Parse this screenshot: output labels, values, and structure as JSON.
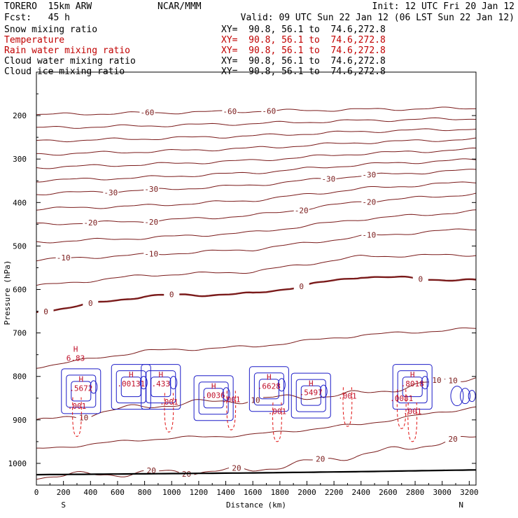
{
  "header": {
    "model": "TORERO  15km ARW",
    "org": "NCAR/MMM",
    "init": "Init: 12 UTC Fri 20 Jan 12",
    "fcst": "Fcst:   45 h",
    "valid": "Valid: 09 UTC Sun 22 Jan 12 (06 LST Sun 22 Jan 12)"
  },
  "fields": [
    {
      "name": "Snow mixing ratio",
      "xy": "XY=  90.8, 56.1 to  74.6,272.8",
      "color": "#000000"
    },
    {
      "name": "Temperature",
      "xy": "XY=  90.8, 56.1 to  74.6,272.8",
      "color": "#c00000"
    },
    {
      "name": "Rain water mixing ratio",
      "xy": "XY=  90.8, 56.1 to  74.6,272.8",
      "color": "#c00000"
    },
    {
      "name": "Cloud water mixing ratio",
      "xy": "XY=  90.8, 56.1 to  74.6,272.8",
      "color": "#000000"
    },
    {
      "name": "Cloud ice mixing ratio",
      "xy": "XY=  90.8, 56.1 to  74.6,272.8",
      "color": "#000000"
    }
  ],
  "colors": {
    "temperature": "#7a1a1a",
    "cloud": "#1c1cc8",
    "rain": "#e01010",
    "marker": "#c0102a",
    "ground": "#000000"
  },
  "chart_data": {
    "type": "contour cross-section",
    "xlabel": "Distance (km)",
    "ylabel": "Pressure (hPa)",
    "xlim": [
      0,
      3250
    ],
    "ylim": [
      1050,
      100
    ],
    "x_ticks": [
      0,
      200,
      400,
      600,
      800,
      1000,
      1200,
      1400,
      1600,
      1800,
      2000,
      2200,
      2400,
      2600,
      2800,
      3000,
      3200
    ],
    "y_ticks": [
      200,
      300,
      400,
      500,
      600,
      700,
      800,
      900,
      1000
    ],
    "x_end_labels": {
      "left": "S",
      "right": "N"
    },
    "isotherms": [
      {
        "level": -60,
        "x": [
          0,
          800,
          1600,
          2400,
          3250
        ],
        "p": [
          198,
          194,
          190,
          186,
          183
        ],
        "labels": [
          {
            "text": "-60",
            "x": 820
          },
          {
            "text": "-60",
            "x": 1430
          },
          {
            "text": "-60",
            "x": 1720
          }
        ]
      },
      {
        "level": -30,
        "x": [
          0,
          800,
          1600,
          2400,
          3250
        ],
        "p": [
          380,
          372,
          360,
          338,
          325
        ],
        "labels": [
          {
            "text": "-30",
            "x": 550
          },
          {
            "text": "-30",
            "x": 850
          },
          {
            "text": "-30",
            "x": 2160
          },
          {
            "text": "-30",
            "x": 2460
          }
        ]
      },
      {
        "level": -20,
        "x": [
          0,
          800,
          1600,
          2400,
          3250
        ],
        "p": [
          450,
          443,
          430,
          398,
          380
        ],
        "labels": [
          {
            "text": "-20",
            "x": 400
          },
          {
            "text": "-20",
            "x": 850
          },
          {
            "text": "-20",
            "x": 1960
          },
          {
            "text": "-20",
            "x": 2460
          }
        ]
      },
      {
        "level": -10,
        "x": [
          0,
          800,
          1600,
          2400,
          3250
        ],
        "p": [
          532,
          520,
          508,
          478,
          460
        ],
        "labels": [
          {
            "text": "-10",
            "x": 200
          },
          {
            "text": "-10",
            "x": 850
          },
          {
            "text": "-10",
            "x": 2460
          }
        ]
      },
      {
        "level": 0,
        "x": [
          0,
          800,
          1600,
          2400,
          3250
        ],
        "p": [
          652,
          615,
          610,
          570,
          580
        ],
        "labels": [
          {
            "text": "0",
            "x": 70
          },
          {
            "text": "0",
            "x": 400
          },
          {
            "text": "0",
            "x": 1000
          },
          {
            "text": "0",
            "x": 1960
          },
          {
            "text": "0",
            "x": 2840
          }
        ]
      },
      {
        "level": 10,
        "x": [
          0,
          800,
          1600,
          2400,
          3250
        ],
        "p": [
          905,
          868,
          853,
          840,
          800
        ],
        "labels": [
          {
            "text": "10",
            "x": 350
          },
          {
            "text": "10",
            "x": 1620
          },
          {
            "text": "10",
            "x": 2960
          },
          {
            "text": "10",
            "x": 3080
          }
        ]
      },
      {
        "level": 20,
        "x": [
          0,
          800,
          1600,
          2400,
          3250
        ],
        "p": [
          1030,
          1022,
          1015,
          980,
          940
        ],
        "labels": [
          {
            "text": "20",
            "x": 850
          },
          {
            "text": "20",
            "x": 1110
          },
          {
            "text": "20",
            "x": 1480
          },
          {
            "text": "20",
            "x": 2100
          },
          {
            "text": "20",
            "x": 3080
          }
        ]
      }
    ],
    "highs": [
      {
        "label": "H",
        "value": "6.83",
        "x": 290,
        "p": 753
      },
      {
        "label": "H",
        "value": ".5672",
        "x": 330,
        "p": 822
      },
      {
        "label": "H",
        "value": ".00131",
        "x": 700,
        "p": 812
      },
      {
        "label": "H",
        "value": ".433",
        "x": 920,
        "p": 812
      },
      {
        "label": "H",
        "value": ".0036",
        "x": 1310,
        "p": 838
      },
      {
        "label": "H",
        "value": ".6628",
        "x": 1720,
        "p": 817
      },
      {
        "label": "H",
        "value": ".5497",
        "x": 2030,
        "p": 832
      },
      {
        "label": "H",
        "value": ".8018",
        "x": 2780,
        "p": 812
      }
    ],
    "min_labels": [
      {
        "text": ".001",
        "x": 300,
        "p": 868
      },
      {
        "text": ".001",
        "x": 980,
        "p": 858
      },
      {
        "text": ".001",
        "x": 1440,
        "p": 853
      },
      {
        "text": ".001",
        "x": 1780,
        "p": 880
      },
      {
        "text": ".001",
        "x": 2300,
        "p": 845
      },
      {
        "text": ".001",
        "x": 2780,
        "p": 880
      },
      {
        "text": ".0081",
        "x": 2700,
        "p": 850
      }
    ],
    "ground_pressure": {
      "x": [
        0,
        800,
        1600,
        2400,
        3250
      ],
      "p": [
        1026,
        1024,
        1022,
        1019,
        1015
      ]
    }
  }
}
